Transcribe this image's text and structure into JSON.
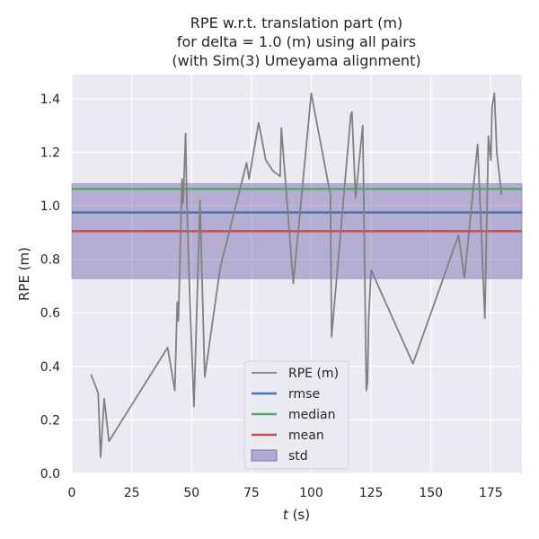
{
  "chart_data": {
    "type": "line",
    "title_lines": [
      "RPE w.r.t. translation part (m)",
      "for delta = 1.0 (m) using all pairs",
      "(with Sim(3) Umeyama alignment)"
    ],
    "xlabel_var": "t",
    "xlabel_unit": " (s)",
    "ylabel": "RPE (m)",
    "xlim": [
      0,
      188
    ],
    "ylim": [
      0,
      1.49
    ],
    "xticks": [
      0,
      25,
      50,
      75,
      100,
      125,
      150,
      175
    ],
    "yticks": [
      0.0,
      0.2,
      0.4,
      0.6,
      0.8,
      1.0,
      1.2,
      1.4
    ],
    "ytick_labels": [
      "0.0",
      "0.2",
      "0.4",
      "0.6",
      "0.8",
      "1.0",
      "1.2",
      "1.4"
    ],
    "grid": true,
    "legend_position": "bottom-center",
    "series": [
      {
        "name": "RPE (m)",
        "color": "#808080",
        "x": [
          8,
          11,
          12,
          13.5,
          15.5,
          40,
          43,
          44,
          44.5,
          46,
          46.5,
          47.5,
          48,
          49.5,
          51,
          52.5,
          53.5,
          55.5,
          62,
          73,
          74,
          78,
          81,
          84,
          87,
          87.5,
          92.5,
          100,
          108,
          108.5,
          116.5,
          117,
          118.5,
          121.5,
          123,
          123.5,
          124,
          125,
          142.5,
          161.5,
          164,
          169.5,
          172.5,
          174,
          175,
          175.5,
          176.5,
          177.5,
          179.5
        ],
        "y": [
          0.37,
          0.3,
          0.06,
          0.28,
          0.12,
          0.47,
          0.31,
          0.64,
          0.57,
          1.1,
          1.01,
          1.27,
          1.02,
          0.6,
          0.25,
          0.7,
          1.02,
          0.36,
          0.77,
          1.16,
          1.1,
          1.31,
          1.17,
          1.13,
          1.11,
          1.29,
          0.71,
          1.42,
          1.04,
          0.51,
          1.34,
          1.35,
          1.03,
          1.3,
          0.31,
          0.34,
          0.58,
          0.76,
          0.41,
          0.89,
          0.73,
          1.23,
          0.58,
          1.26,
          1.17,
          1.37,
          1.42,
          1.2,
          1.04
        ]
      }
    ],
    "stats": [
      {
        "name": "rmse",
        "value": 0.975,
        "color": "#4c72b0"
      },
      {
        "name": "median",
        "value": 1.063,
        "color": "#55a868"
      },
      {
        "name": "mean",
        "value": 0.905,
        "color": "#c44e52"
      }
    ],
    "std_band": {
      "name": "std",
      "low": 0.728,
      "high": 1.082,
      "color": "#8172b2"
    }
  }
}
